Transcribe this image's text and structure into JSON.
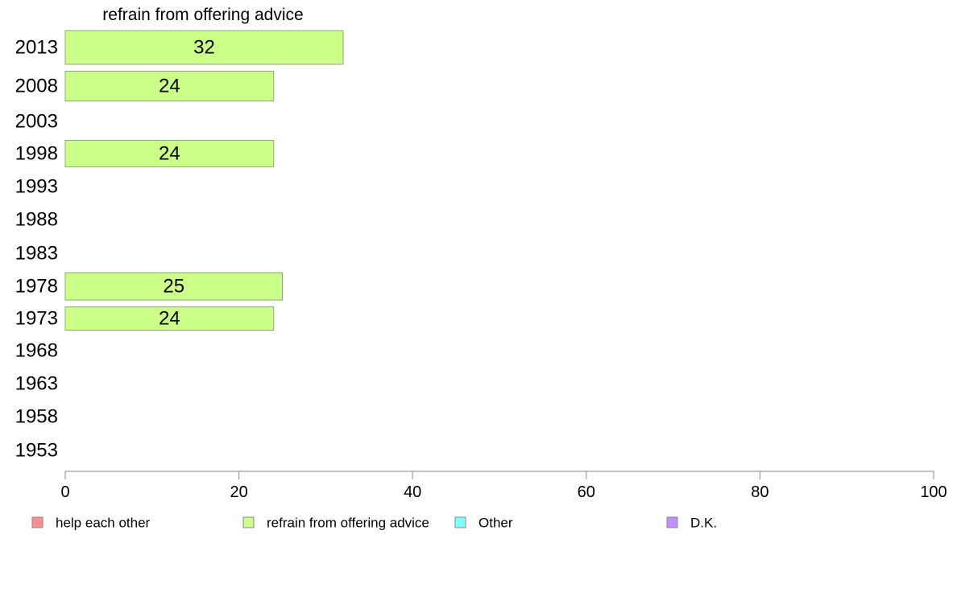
{
  "chart_data": {
    "type": "bar",
    "orientation": "horizontal",
    "title": "refrain from offering advice",
    "xlabel": "",
    "ylabel": "",
    "xlim": [
      0,
      100
    ],
    "x_ticks": [
      0,
      20,
      40,
      60,
      80,
      100
    ],
    "categories": [
      "2013",
      "2008",
      "2003",
      "1998",
      "1993",
      "1988",
      "1983",
      "1978",
      "1973",
      "1968",
      "1963",
      "1958",
      "1953"
    ],
    "series": [
      {
        "name": "refrain from offering advice",
        "color": "#ccff88",
        "values": [
          32,
          24,
          null,
          24,
          null,
          null,
          null,
          25,
          24,
          null,
          null,
          null,
          null
        ]
      }
    ],
    "grid": false,
    "legend": {
      "placement": "bottom",
      "items": [
        {
          "label": "help each other",
          "color": "#ff8f8f"
        },
        {
          "label": "refrain from offering advice",
          "color": "#ccff88"
        },
        {
          "label": "Other",
          "color": "#7fffff"
        },
        {
          "label": "D.K.",
          "color": "#c48fff"
        }
      ]
    }
  }
}
